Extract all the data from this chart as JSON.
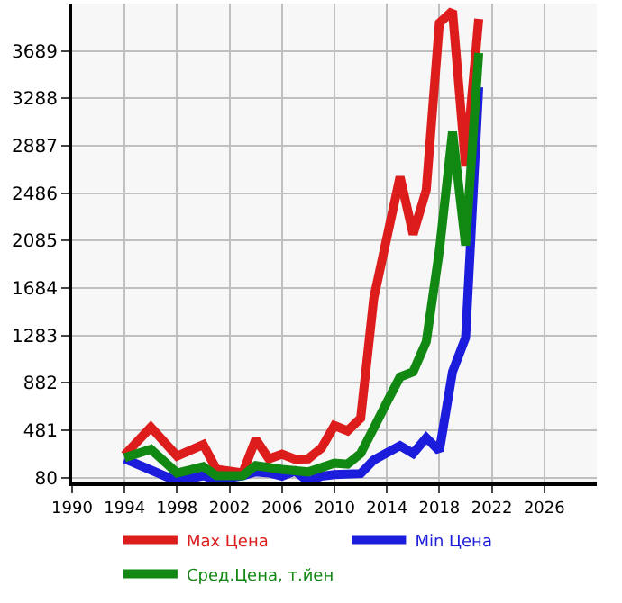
{
  "chart_data": {
    "type": "line",
    "xlim": [
      1990,
      2030
    ],
    "xticks": [
      1990,
      1994,
      1998,
      2002,
      2006,
      2010,
      2014,
      2018,
      2022,
      2026
    ],
    "ylim": [
      40,
      4090
    ],
    "yticks": [
      80,
      481,
      882,
      1283,
      1684,
      2085,
      2486,
      2887,
      3288,
      3689
    ],
    "grid": true,
    "legend": "bottom",
    "marker": "none",
    "line_style": "solid",
    "series": [
      {
        "name": "Max Цена",
        "color": "#dd1c1c",
        "x": [
          1994,
          1996,
          1998,
          2000,
          2001,
          2003,
          2004,
          2005,
          2006,
          2007,
          2008,
          2009,
          2010,
          2011,
          2012,
          2013,
          2015,
          2016,
          2017,
          2018,
          2019,
          2020,
          2021
        ],
        "values": [
          271,
          508,
          263,
          361,
          151,
          120,
          405,
          240,
          280,
          236,
          240,
          330,
          521,
          477,
          584,
          1600,
          2624,
          2139,
          2513,
          3926,
          4028,
          2714,
          3961
        ]
      },
      {
        "name": "Min Цена",
        "color": "#1c1cdd",
        "x": [
          1994,
          1998,
          2000,
          2001,
          2003,
          2004,
          2005,
          2006,
          2007,
          2008,
          2009,
          2010,
          2012,
          2013,
          2015,
          2016,
          2017,
          2018,
          2019,
          2020,
          2021
        ],
        "values": [
          240,
          50,
          97,
          63,
          97,
          129,
          120,
          93,
          137,
          49,
          93,
          107,
          115,
          230,
          351,
          285,
          418,
          307,
          976,
          1266,
          3382
        ]
      },
      {
        "name": "Сред.Цена, т.йен",
        "color": "#118811",
        "x": [
          1994,
          1996,
          1998,
          2000,
          2001,
          2003,
          2004,
          2006,
          2008,
          2010,
          2011,
          2012,
          2013,
          2014,
          2015,
          2016,
          2017,
          2018,
          2019,
          2020,
          2021
        ],
        "values": [
          250,
          321,
          120,
          174,
          97,
          97,
          183,
          151,
          129,
          204,
          195,
          285,
          500,
          720,
          932,
          976,
          1230,
          2000,
          3004,
          2045,
          3672
        ]
      }
    ]
  }
}
